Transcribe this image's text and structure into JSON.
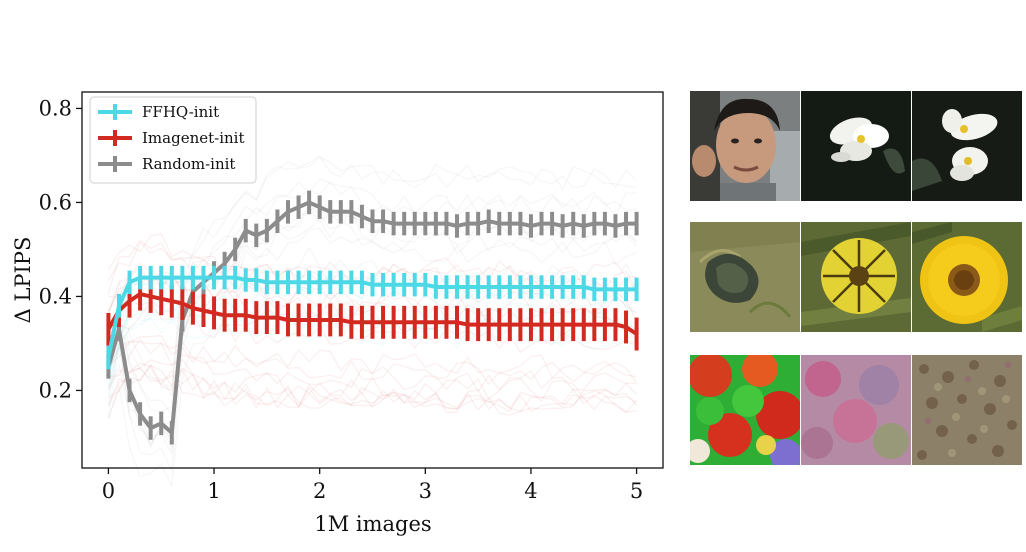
{
  "chart_data": {
    "type": "line",
    "xlabel": "1M images",
    "ylabel": "Δ LPIPS",
    "xlim": [
      -0.25,
      5.25
    ],
    "ylim": [
      0.035,
      0.835
    ],
    "xticks": [
      "0",
      "1",
      "2",
      "3",
      "4",
      "5"
    ],
    "yticks": [
      "0.2",
      "0.4",
      "0.6",
      "0.8"
    ],
    "grid": false,
    "legend_position": "top-left",
    "series": [
      {
        "name": "FFHQ-init",
        "color": "#4dd8e6",
        "x": [
          0.0,
          0.1,
          0.2,
          0.3,
          0.4,
          0.5,
          0.6,
          0.7,
          0.8,
          0.9,
          1.0,
          1.1,
          1.2,
          1.3,
          1.4,
          1.5,
          1.6,
          1.7,
          1.8,
          1.9,
          2.0,
          2.1,
          2.2,
          2.3,
          2.4,
          2.5,
          2.6,
          2.7,
          2.8,
          2.9,
          3.0,
          3.1,
          3.2,
          3.3,
          3.4,
          3.5,
          3.6,
          3.7,
          3.8,
          3.9,
          4.0,
          4.1,
          4.2,
          4.3,
          4.4,
          4.5,
          4.6,
          4.7,
          4.8,
          4.9,
          5.0
        ],
        "y": [
          0.27,
          0.38,
          0.43,
          0.44,
          0.44,
          0.44,
          0.44,
          0.44,
          0.44,
          0.44,
          0.44,
          0.44,
          0.44,
          0.435,
          0.435,
          0.43,
          0.43,
          0.43,
          0.43,
          0.43,
          0.43,
          0.43,
          0.43,
          0.43,
          0.43,
          0.425,
          0.425,
          0.425,
          0.425,
          0.425,
          0.425,
          0.42,
          0.42,
          0.42,
          0.42,
          0.42,
          0.42,
          0.42,
          0.42,
          0.42,
          0.42,
          0.42,
          0.42,
          0.42,
          0.42,
          0.42,
          0.415,
          0.415,
          0.415,
          0.415,
          0.415
        ]
      },
      {
        "name": "Imagenet-init",
        "color": "#d22a20",
        "x": [
          0.0,
          0.1,
          0.2,
          0.3,
          0.4,
          0.5,
          0.6,
          0.7,
          0.8,
          0.9,
          1.0,
          1.1,
          1.2,
          1.3,
          1.4,
          1.5,
          1.6,
          1.7,
          1.8,
          1.9,
          2.0,
          2.1,
          2.2,
          2.3,
          2.4,
          2.5,
          2.6,
          2.7,
          2.8,
          2.9,
          3.0,
          3.1,
          3.2,
          3.3,
          3.4,
          3.5,
          3.6,
          3.7,
          3.8,
          3.9,
          4.0,
          4.1,
          4.2,
          4.3,
          4.4,
          4.5,
          4.6,
          4.7,
          4.8,
          4.9,
          5.0
        ],
        "y": [
          0.33,
          0.37,
          0.39,
          0.405,
          0.4,
          0.395,
          0.39,
          0.385,
          0.375,
          0.37,
          0.365,
          0.36,
          0.36,
          0.36,
          0.355,
          0.355,
          0.355,
          0.35,
          0.35,
          0.35,
          0.35,
          0.35,
          0.35,
          0.345,
          0.345,
          0.345,
          0.345,
          0.345,
          0.345,
          0.345,
          0.345,
          0.345,
          0.345,
          0.345,
          0.34,
          0.34,
          0.34,
          0.34,
          0.34,
          0.34,
          0.34,
          0.34,
          0.34,
          0.34,
          0.34,
          0.34,
          0.34,
          0.34,
          0.34,
          0.335,
          0.32
        ]
      },
      {
        "name": "Random-init",
        "color": "#8c8c8c",
        "x": [
          0.0,
          0.1,
          0.2,
          0.3,
          0.4,
          0.5,
          0.6,
          0.7,
          0.8,
          0.9,
          1.0,
          1.1,
          1.2,
          1.3,
          1.4,
          1.5,
          1.6,
          1.7,
          1.8,
          1.9,
          2.0,
          2.1,
          2.2,
          2.3,
          2.4,
          2.5,
          2.6,
          2.7,
          2.8,
          2.9,
          3.0,
          3.1,
          3.2,
          3.3,
          3.4,
          3.5,
          3.6,
          3.7,
          3.8,
          3.9,
          4.0,
          4.1,
          4.2,
          4.3,
          4.4,
          4.5,
          4.6,
          4.7,
          4.8,
          4.9,
          5.0
        ],
        "y": [
          0.25,
          0.33,
          0.2,
          0.15,
          0.12,
          0.13,
          0.11,
          0.35,
          0.41,
          0.43,
          0.45,
          0.47,
          0.5,
          0.54,
          0.53,
          0.54,
          0.56,
          0.58,
          0.59,
          0.6,
          0.59,
          0.58,
          0.58,
          0.58,
          0.57,
          0.56,
          0.56,
          0.555,
          0.555,
          0.555,
          0.555,
          0.555,
          0.555,
          0.55,
          0.555,
          0.555,
          0.56,
          0.555,
          0.555,
          0.555,
          0.55,
          0.555,
          0.555,
          0.55,
          0.555,
          0.55,
          0.555,
          0.555,
          0.55,
          0.555,
          0.555
        ]
      }
    ],
    "thumbnail_rows": [
      [
        "face photo",
        "white flowers",
        "white flowers"
      ],
      [
        "mottled blob",
        "striped yellow flower",
        "yellow flower"
      ],
      [
        "red-green noise",
        "pink blur",
        "brown speckle"
      ]
    ]
  }
}
